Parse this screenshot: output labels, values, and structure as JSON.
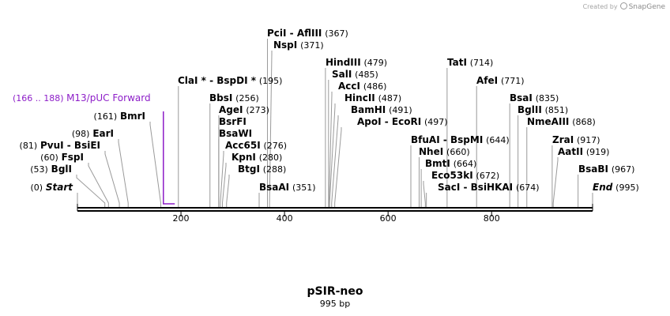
{
  "credit": {
    "prefix": "Created by",
    "brand": "SnapGene"
  },
  "plasmid": {
    "name": "pSIR-neo",
    "size_label": "995 bp",
    "length": 995
  },
  "axis": {
    "ticks": [
      200,
      400,
      600,
      800
    ]
  },
  "colors": {
    "line": "#000000",
    "leader": "#9a9a9a",
    "primer": "#8d1ec8",
    "tick": "#000000"
  },
  "primer": {
    "name": "M13/pUC Forward",
    "range_label": "(166 .. 188)",
    "start": 166,
    "end": 188
  },
  "features": [
    {
      "name": "PciI  -  AflIII",
      "pos_label": "(367)",
      "pos": 367
    },
    {
      "name": "NspI",
      "pos_label": "(371)",
      "pos": 371
    },
    {
      "name": "ClaI * -  BspDI *",
      "pos_label": "(195)",
      "pos": 195
    },
    {
      "name": "BbsI",
      "pos_label": "(256)",
      "pos": 256
    },
    {
      "name": "AgeI",
      "pos_label": "(273)",
      "pos": 273
    },
    {
      "name": "BsrFI",
      "pos_label": "",
      "pos": 273
    },
    {
      "name": "BsaWI",
      "pos_label": "",
      "pos": 273
    },
    {
      "name": "Acc65I",
      "pos_label": "(276)",
      "pos": 276
    },
    {
      "name": "KpnI",
      "pos_label": "(280)",
      "pos": 280
    },
    {
      "name": "BtgI",
      "pos_label": "(288)",
      "pos": 288
    },
    {
      "name": "BsaAI",
      "pos_label": "(351)",
      "pos": 351
    },
    {
      "name": "HindIII",
      "pos_label": "(479)",
      "pos": 479
    },
    {
      "name": "SalI",
      "pos_label": "(485)",
      "pos": 485
    },
    {
      "name": "AccI",
      "pos_label": "(486)",
      "pos": 486
    },
    {
      "name": "HincII",
      "pos_label": "(487)",
      "pos": 487
    },
    {
      "name": "BamHI",
      "pos_label": "(491)",
      "pos": 491
    },
    {
      "name": "ApoI  -  EcoRI",
      "pos_label": "(497)",
      "pos": 497
    },
    {
      "name": "TatI",
      "pos_label": "(714)",
      "pos": 714
    },
    {
      "name": "AfeI",
      "pos_label": "(771)",
      "pos": 771
    },
    {
      "name": "BfuAI  -  BspMI",
      "pos_label": "(644)",
      "pos": 644
    },
    {
      "name": "NheI",
      "pos_label": "(660)",
      "pos": 660
    },
    {
      "name": "BmtI",
      "pos_label": "(664)",
      "pos": 664
    },
    {
      "name": "Eco53kI",
      "pos_label": "(672)",
      "pos": 672
    },
    {
      "name": "SacI  -  BsiHKAI",
      "pos_label": "(674)",
      "pos": 674
    },
    {
      "name": "BsaI",
      "pos_label": "(835)",
      "pos": 835
    },
    {
      "name": "BglII",
      "pos_label": "(851)",
      "pos": 851
    },
    {
      "name": "NmeAIII",
      "pos_label": "(868)",
      "pos": 868
    },
    {
      "name": "ZraI",
      "pos_label": "(917)",
      "pos": 917
    },
    {
      "name": "AatII",
      "pos_label": "(919)",
      "pos": 919
    },
    {
      "name": "BsaBI",
      "pos_label": "(967)",
      "pos": 967
    },
    {
      "name": "BmrI",
      "pos_label": "(161)",
      "pos": 161
    },
    {
      "name": "EarI",
      "pos_label": "(98)",
      "pos": 98
    },
    {
      "name": "PvuI  -  BsiEI",
      "pos_label": "(81)",
      "pos": 81
    },
    {
      "name": "FspI",
      "pos_label": "(60)",
      "pos": 60
    },
    {
      "name": "BglI",
      "pos_label": "(53)",
      "pos": 53
    },
    {
      "name": "Start",
      "pos_label": "(0)",
      "pos": 0,
      "italic": true
    },
    {
      "name": "End",
      "pos_label": "(995)",
      "pos": 995,
      "italic": true
    }
  ]
}
